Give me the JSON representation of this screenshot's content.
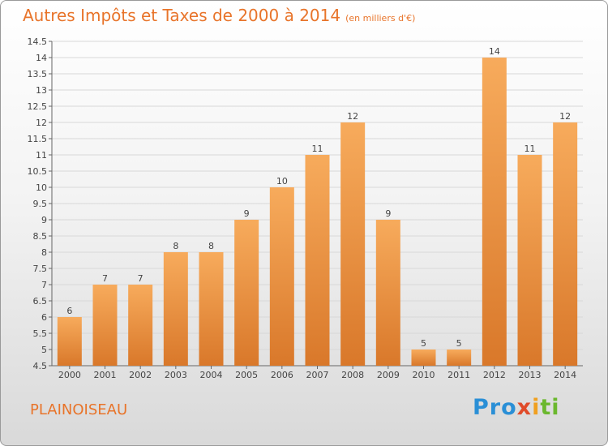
{
  "header": {
    "title": "Autres Impôts et Taxes de 2000 à 2014",
    "unit": "(en milliers d'€)"
  },
  "footer": {
    "place": "PLAINOISEAU",
    "logo_parts": [
      "Pro",
      "x",
      "i",
      "ti"
    ]
  },
  "colors": {
    "accent": "#e8742a",
    "bar_top": "#f6a95a",
    "bar_bottom": "#d9782a"
  },
  "chart_data": {
    "type": "bar",
    "categories": [
      "2000",
      "2001",
      "2002",
      "2003",
      "2004",
      "2005",
      "2006",
      "2007",
      "2008",
      "2009",
      "2010",
      "2011",
      "2012",
      "2013",
      "2014"
    ],
    "values": [
      6,
      7,
      7,
      8,
      8,
      9,
      10,
      11,
      12,
      9,
      5,
      5,
      14,
      11,
      12
    ],
    "value_labels": [
      "6",
      "7",
      "7",
      "8",
      "8",
      "9",
      "10",
      "11",
      "12",
      "9",
      "5",
      "5",
      "14",
      "11",
      "12"
    ],
    "ylim": [
      4.5,
      14.5
    ],
    "yticks": [
      "4.5",
      "5",
      "5.5",
      "6",
      "6.5",
      "7",
      "7.5",
      "8",
      "8.5",
      "9",
      "9.5",
      "10",
      "10.5",
      "11",
      "11.5",
      "12",
      "12.5",
      "13",
      "13.5",
      "14",
      "14.5"
    ],
    "grid": true
  }
}
